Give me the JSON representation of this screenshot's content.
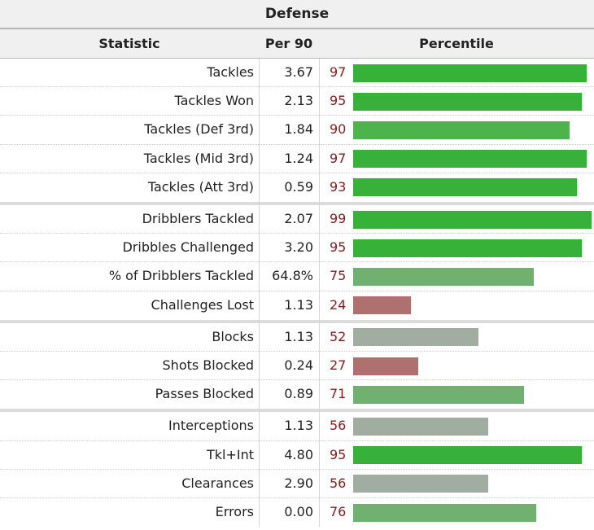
{
  "title": "Defense",
  "headers": {
    "statistic": "Statistic",
    "per90": "Per 90",
    "percentile": "Percentile"
  },
  "colors": {
    "elite": "#38b13a",
    "high": "#4db34d",
    "above_avg": "#70b071",
    "average": "#a1ada1",
    "low": "#af7170",
    "percentile_text": "#8b1a1a",
    "header_bg": "#f0f0f0"
  },
  "chart_data": {
    "type": "bar",
    "title": "Defense",
    "xlim": [
      0,
      100
    ],
    "groups": [
      {
        "rows": [
          {
            "statistic": "Tackles",
            "per90": "3.67",
            "percentile": 97
          },
          {
            "statistic": "Tackles Won",
            "per90": "2.13",
            "percentile": 95
          },
          {
            "statistic": "Tackles (Def 3rd)",
            "per90": "1.84",
            "percentile": 90
          },
          {
            "statistic": "Tackles (Mid 3rd)",
            "per90": "1.24",
            "percentile": 97
          },
          {
            "statistic": "Tackles (Att 3rd)",
            "per90": "0.59",
            "percentile": 93
          }
        ]
      },
      {
        "rows": [
          {
            "statistic": "Dribblers Tackled",
            "per90": "2.07",
            "percentile": 99
          },
          {
            "statistic": "Dribbles Challenged",
            "per90": "3.20",
            "percentile": 95
          },
          {
            "statistic": "% of Dribblers Tackled",
            "per90": "64.8%",
            "percentile": 75
          },
          {
            "statistic": "Challenges Lost",
            "per90": "1.13",
            "percentile": 24
          }
        ]
      },
      {
        "rows": [
          {
            "statistic": "Blocks",
            "per90": "1.13",
            "percentile": 52
          },
          {
            "statistic": "Shots Blocked",
            "per90": "0.24",
            "percentile": 27
          },
          {
            "statistic": "Passes Blocked",
            "per90": "0.89",
            "percentile": 71
          }
        ]
      },
      {
        "rows": [
          {
            "statistic": "Interceptions",
            "per90": "1.13",
            "percentile": 56
          },
          {
            "statistic": "Tkl+Int",
            "per90": "4.80",
            "percentile": 95
          },
          {
            "statistic": "Clearances",
            "per90": "2.90",
            "percentile": 56
          },
          {
            "statistic": "Errors",
            "per90": "0.00",
            "percentile": 76
          }
        ]
      }
    ]
  }
}
